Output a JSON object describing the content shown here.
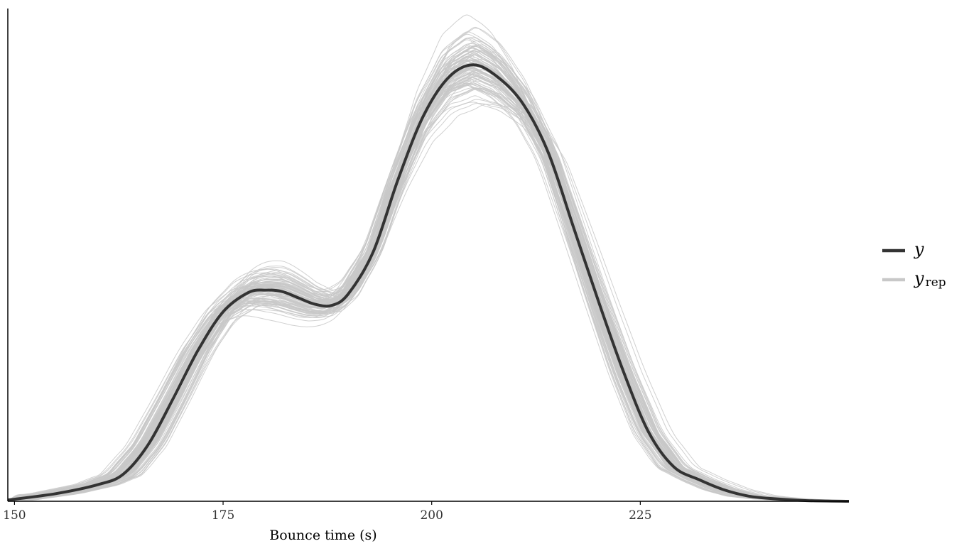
{
  "chart_data": {
    "type": "line",
    "title": "",
    "xlabel": "Bounce time (s)",
    "ylabel": "",
    "xlim": [
      149.2,
      250
    ],
    "ylim": [
      0,
      0.0385
    ],
    "x_ticks": [
      150,
      175,
      200,
      225
    ],
    "x_tick_labels": [
      "150",
      "175",
      "200",
      "225"
    ],
    "grid": false,
    "legend_position": "right",
    "colors": {
      "observed": "#333333",
      "replicated": "#c8c8c8"
    },
    "observed": {
      "name": "y",
      "points": [
        [
          149.2,
          0.0001
        ],
        [
          155,
          0.0006
        ],
        [
          160,
          0.0013
        ],
        [
          163,
          0.0021
        ],
        [
          166,
          0.0044
        ],
        [
          169,
          0.008
        ],
        [
          172,
          0.0118
        ],
        [
          175,
          0.0148
        ],
        [
          178,
          0.0163
        ],
        [
          180,
          0.0165
        ],
        [
          182,
          0.0164
        ],
        [
          184,
          0.0159
        ],
        [
          186,
          0.0154
        ],
        [
          188,
          0.0153
        ],
        [
          190,
          0.0162
        ],
        [
          193,
          0.0195
        ],
        [
          196,
          0.0252
        ],
        [
          199,
          0.0301
        ],
        [
          202,
          0.0331
        ],
        [
          205,
          0.0341
        ],
        [
          208,
          0.0331
        ],
        [
          211,
          0.031
        ],
        [
          214,
          0.0272
        ],
        [
          217,
          0.0214
        ],
        [
          220,
          0.0156
        ],
        [
          223,
          0.0101
        ],
        [
          226,
          0.0054
        ],
        [
          229,
          0.0027
        ],
        [
          232,
          0.0017
        ],
        [
          235,
          0.0009
        ],
        [
          238,
          0.0004
        ],
        [
          241,
          0.0002
        ],
        [
          245,
          5e-05
        ],
        [
          250,
          0.0
        ]
      ]
    },
    "replicated_legend": {
      "name": "y",
      "subscript": "rep",
      "draw_count": 100
    }
  }
}
